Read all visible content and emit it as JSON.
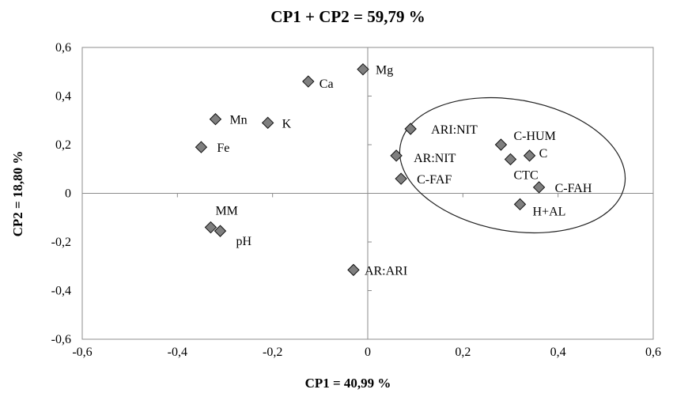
{
  "chart_data": {
    "type": "scatter",
    "title": "CP1 + CP2 = 59,79 %",
    "xlabel": "CP1 = 40,99 %",
    "ylabel": "CP2 = 18,80 %",
    "xlim": [
      -0.6,
      0.6
    ],
    "ylim": [
      -0.6,
      0.6
    ],
    "x_ticks": [
      "-0,6",
      "-0,4",
      "-0,2",
      "0",
      "0,2",
      "0,4",
      "0,6"
    ],
    "y_ticks": [
      "0,6",
      "0,4",
      "0,2",
      "0",
      "-0,2",
      "-0,4",
      "-0,6"
    ],
    "grid": false,
    "legend": "none",
    "marker": "diamond",
    "marker_color": "#7f7f7f",
    "annotation": "ellipse around the right-side variable cluster",
    "points": [
      {
        "label": "Mg",
        "x": -0.01,
        "y": 0.51
      },
      {
        "label": "Ca",
        "x": -0.125,
        "y": 0.46
      },
      {
        "label": "Mn",
        "x": -0.32,
        "y": 0.305
      },
      {
        "label": "K",
        "x": -0.21,
        "y": 0.29
      },
      {
        "label": "Fe",
        "x": -0.35,
        "y": 0.19
      },
      {
        "label": "ARI:NIT",
        "x": 0.09,
        "y": 0.265
      },
      {
        "label": "C-HUM",
        "x": 0.28,
        "y": 0.2
      },
      {
        "label": "AR:NIT",
        "x": 0.06,
        "y": 0.155
      },
      {
        "label": "C",
        "x": 0.34,
        "y": 0.155
      },
      {
        "label": "CTC",
        "x": 0.3,
        "y": 0.14
      },
      {
        "label": "C-FAF",
        "x": 0.07,
        "y": 0.06
      },
      {
        "label": "C-FAH",
        "x": 0.36,
        "y": 0.025
      },
      {
        "label": "H+AL",
        "x": 0.32,
        "y": -0.045
      },
      {
        "label": "MM",
        "x": -0.33,
        "y": -0.14
      },
      {
        "label": "pH",
        "x": -0.31,
        "y": -0.155
      },
      {
        "label": "AR:ARI",
        "x": -0.03,
        "y": -0.315
      }
    ]
  }
}
